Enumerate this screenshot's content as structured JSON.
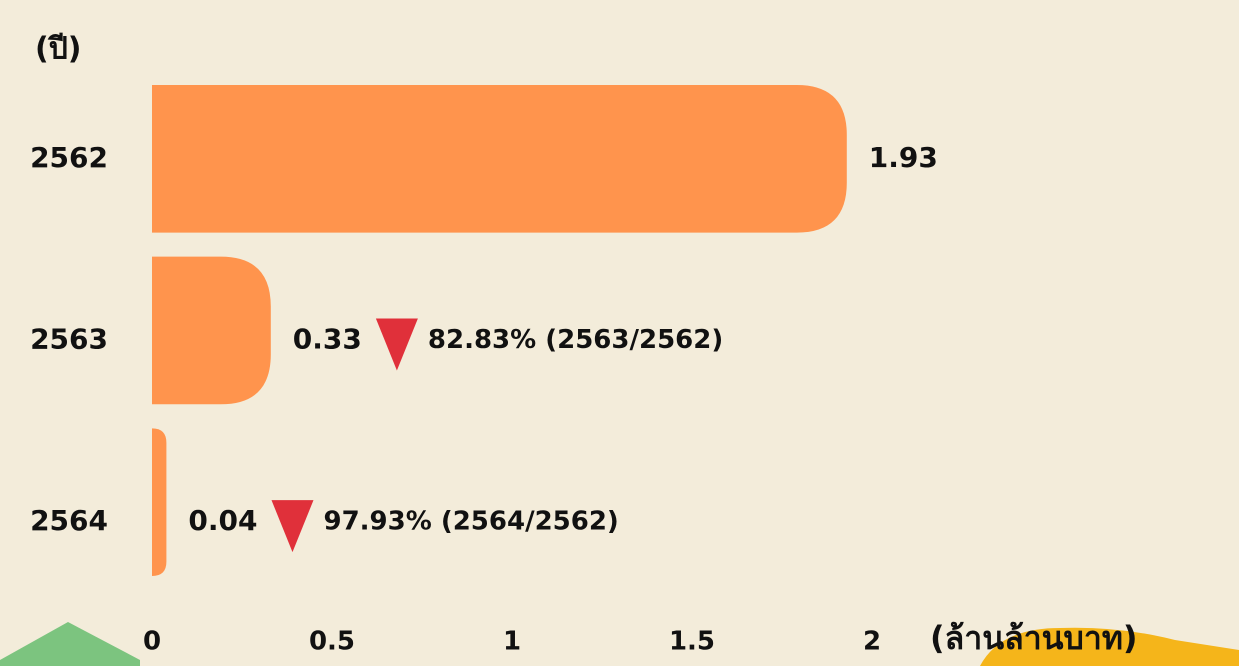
{
  "chart_data": {
    "type": "bar",
    "orientation": "horizontal",
    "y_axis_label": "(ปี)",
    "x_axis_label": "(ล้านล้านบาท)",
    "categories": [
      "2562",
      "2563",
      "2564"
    ],
    "values": [
      1.93,
      0.33,
      0.04
    ],
    "color": "#ff944d",
    "annotations": [
      null,
      "82.83% (2563/2562)",
      "97.93% (2564/2562)"
    ],
    "xlim": [
      0,
      2
    ],
    "xticks": [
      0,
      0.5,
      1,
      1.5,
      2
    ]
  }
}
